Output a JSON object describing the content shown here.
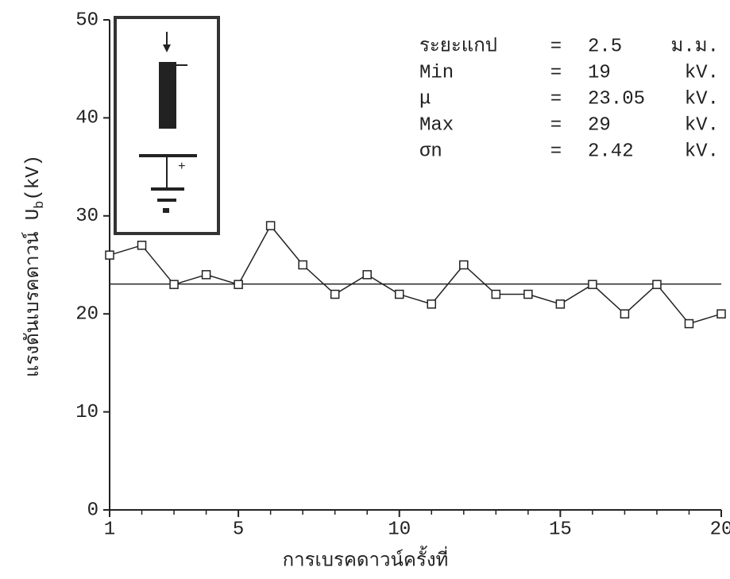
{
  "chart_data": {
    "type": "line",
    "xlabel": "การเบรคดาวน์ครั้งที่",
    "ylabel": {
      "text": "แรงดันเบรคดาวน์ U",
      "subscript": "b",
      "unit": "(kV)"
    },
    "x": [
      1,
      2,
      3,
      4,
      5,
      6,
      7,
      8,
      9,
      10,
      11,
      12,
      13,
      14,
      15,
      16,
      17,
      18,
      19,
      20
    ],
    "series": [
      {
        "color": "#222222",
        "values": [
          26,
          27,
          23,
          24,
          23,
          29,
          25,
          22,
          24,
          22,
          21,
          25,
          22,
          22,
          21,
          23,
          20,
          23,
          19,
          20
        ]
      }
    ],
    "xlim": [
      1,
      20
    ],
    "xticks": [
      1,
      5,
      10,
      15,
      20
    ],
    "x_minor_ticks": [
      2,
      3,
      4,
      6,
      7,
      8,
      9,
      11,
      12,
      13,
      14,
      16,
      17,
      18,
      19
    ],
    "ylim": [
      0,
      50
    ],
    "yticks": [
      0,
      10,
      20,
      30,
      40,
      50
    ],
    "separator": "=",
    "annotations": [
      {
        "label": "ระยะแกป",
        "value": 2.5,
        "unit": "ม.ม."
      },
      {
        "label": "Min",
        "value": 19,
        "unit": "kV."
      },
      {
        "label": "μ",
        "value": 23.05,
        "unit": "kV."
      },
      {
        "label": "Max",
        "value": 29,
        "unit": "kV."
      },
      {
        "label": "σn",
        "value": 2.42,
        "unit": "kV."
      }
    ],
    "mean_annotation": 2
  }
}
